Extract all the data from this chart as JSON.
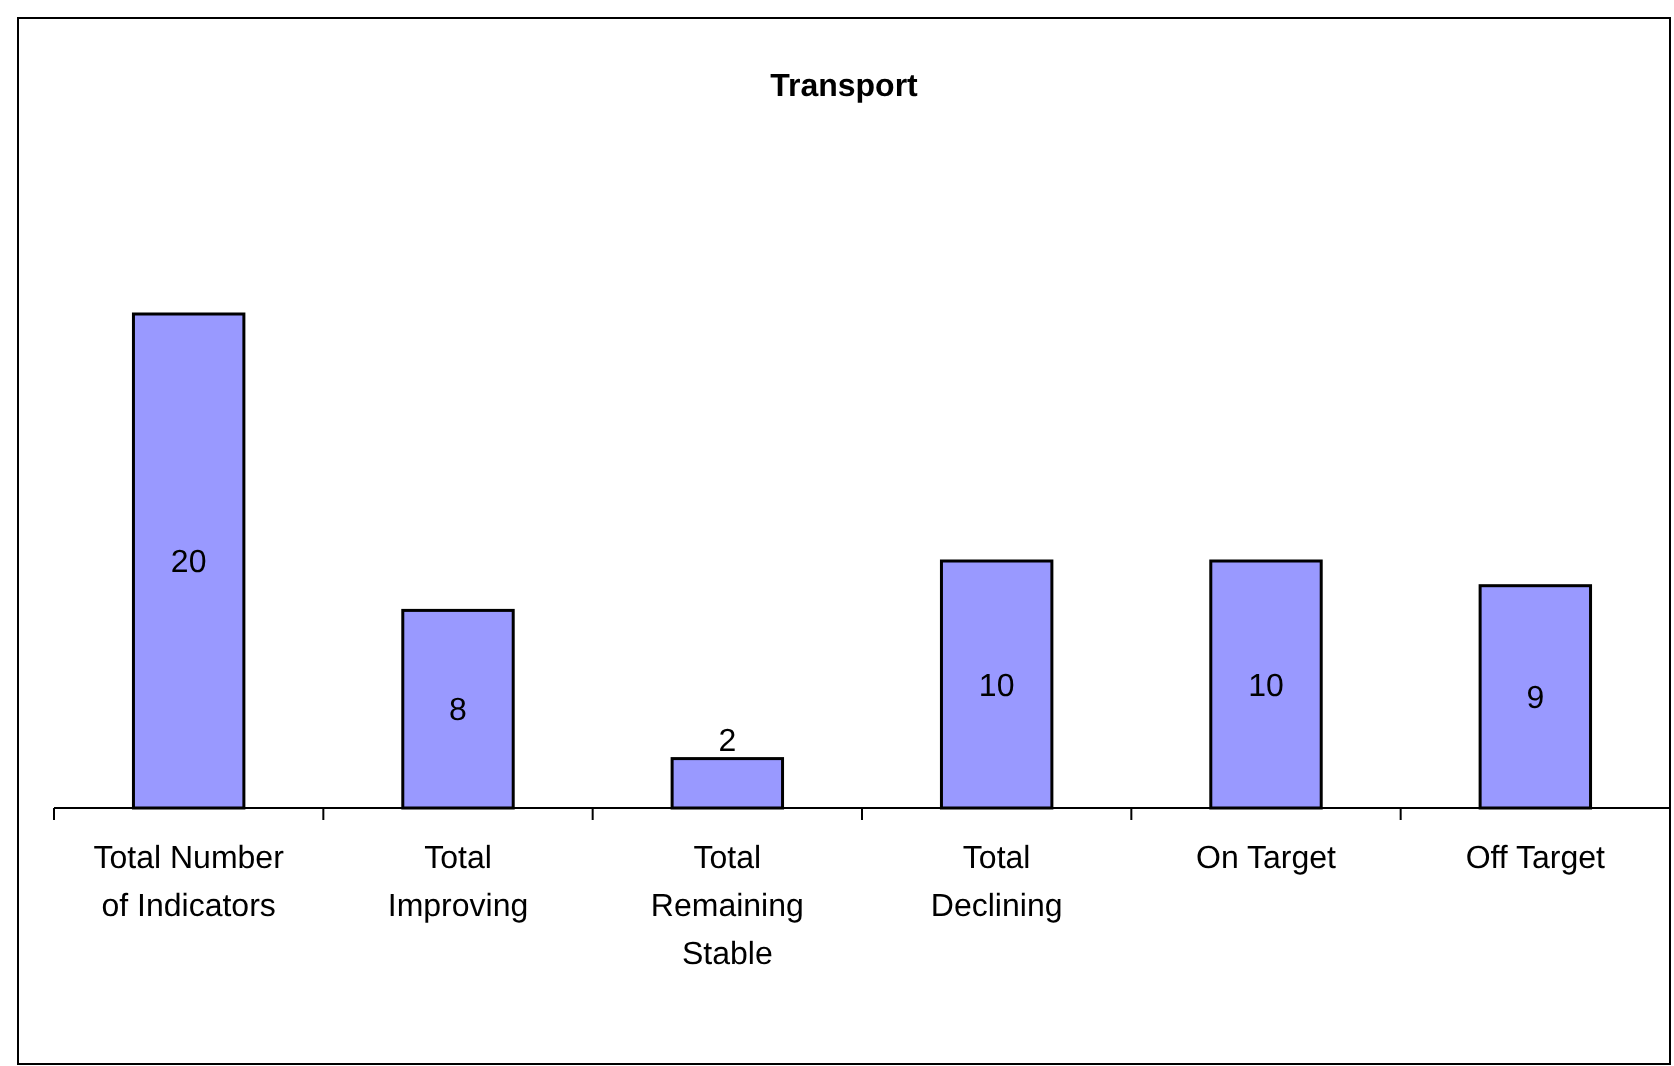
{
  "chart_data": {
    "type": "bar",
    "title": "Transport",
    "categories": [
      "Total Number of Indicators",
      "Total Improving",
      "Total Remaining Stable",
      "Total Declining",
      "On Target",
      "Off Target"
    ],
    "values": [
      20,
      8,
      2,
      10,
      10,
      9
    ],
    "color": "#9999ff",
    "data_labels": true
  }
}
